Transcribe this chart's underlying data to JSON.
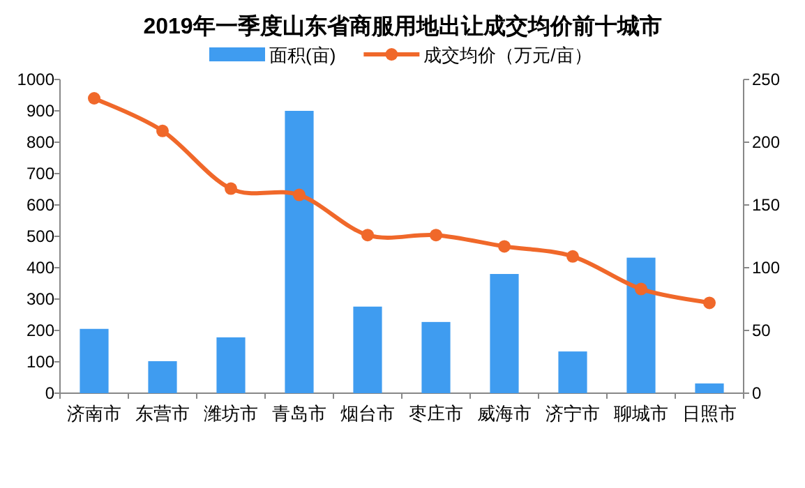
{
  "chart_data": {
    "type": "bar",
    "title": "2019年一季度山东省商服用地出让成交均价前十城市",
    "categories": [
      "济南市",
      "东营市",
      "潍坊市",
      "青岛市",
      "烟台市",
      "枣庄市",
      "威海市",
      "济宁市",
      "聊城市",
      "日照市"
    ],
    "series": [
      {
        "name": "面积(亩)",
        "color": "#3f9cf0",
        "values": [
          205,
          102,
          178,
          900,
          276,
          227,
          380,
          133,
          432,
          31
        ]
      },
      {
        "name": "成交均价（万元/亩）",
        "type": "line",
        "axis": "y2",
        "color": "#f0682a",
        "marker": "circle",
        "values": [
          235,
          209,
          163,
          158,
          126,
          126,
          117,
          109,
          83,
          72
        ]
      }
    ],
    "ylim": [
      0,
      1000
    ],
    "yticks": [
      0,
      100,
      200,
      300,
      400,
      500,
      600,
      700,
      800,
      900,
      1000
    ],
    "y2lim": [
      0,
      250
    ],
    "y2ticks": [
      0,
      50,
      100,
      150,
      200,
      250
    ],
    "legend": "top",
    "grid": false
  }
}
